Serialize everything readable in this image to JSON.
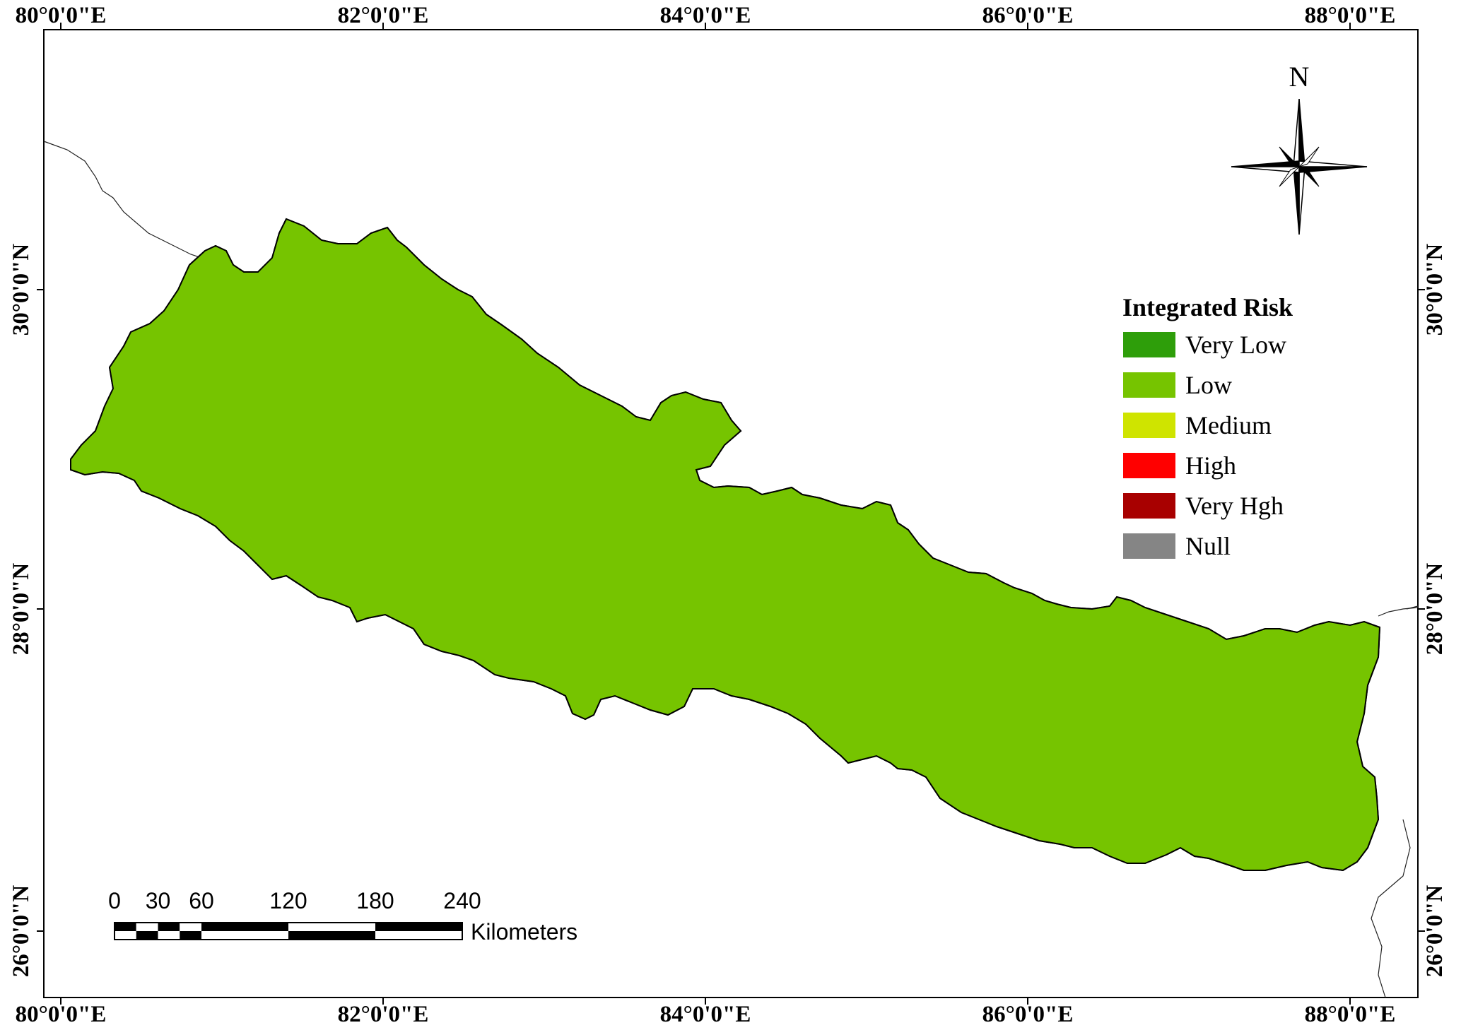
{
  "map": {
    "lon_labels": [
      "80°0'0\"E",
      "82°0'0\"E",
      "84°0'0\"E",
      "86°0'0\"E",
      "88°0'0\"E"
    ],
    "lat_labels": [
      "30°0'0\"N",
      "28°0'0\"N",
      "26°0'0\"N"
    ],
    "north_label": "N"
  },
  "legend": {
    "title": "Integrated Risk",
    "items": [
      {
        "label": "Very Low",
        "color": "#2e9e0a"
      },
      {
        "label": "Low",
        "color": "#76c400"
      },
      {
        "label": "Medium",
        "color": "#cfe400"
      },
      {
        "label": "High",
        "color": "#ff0000"
      },
      {
        "label": "Very Hgh",
        "color": "#a80000"
      },
      {
        "label": "Null",
        "color": "#858585"
      }
    ]
  },
  "scale_bar": {
    "ticks": [
      "0",
      "30",
      "60",
      "120",
      "180",
      "240"
    ],
    "unit": "Kilometers"
  }
}
